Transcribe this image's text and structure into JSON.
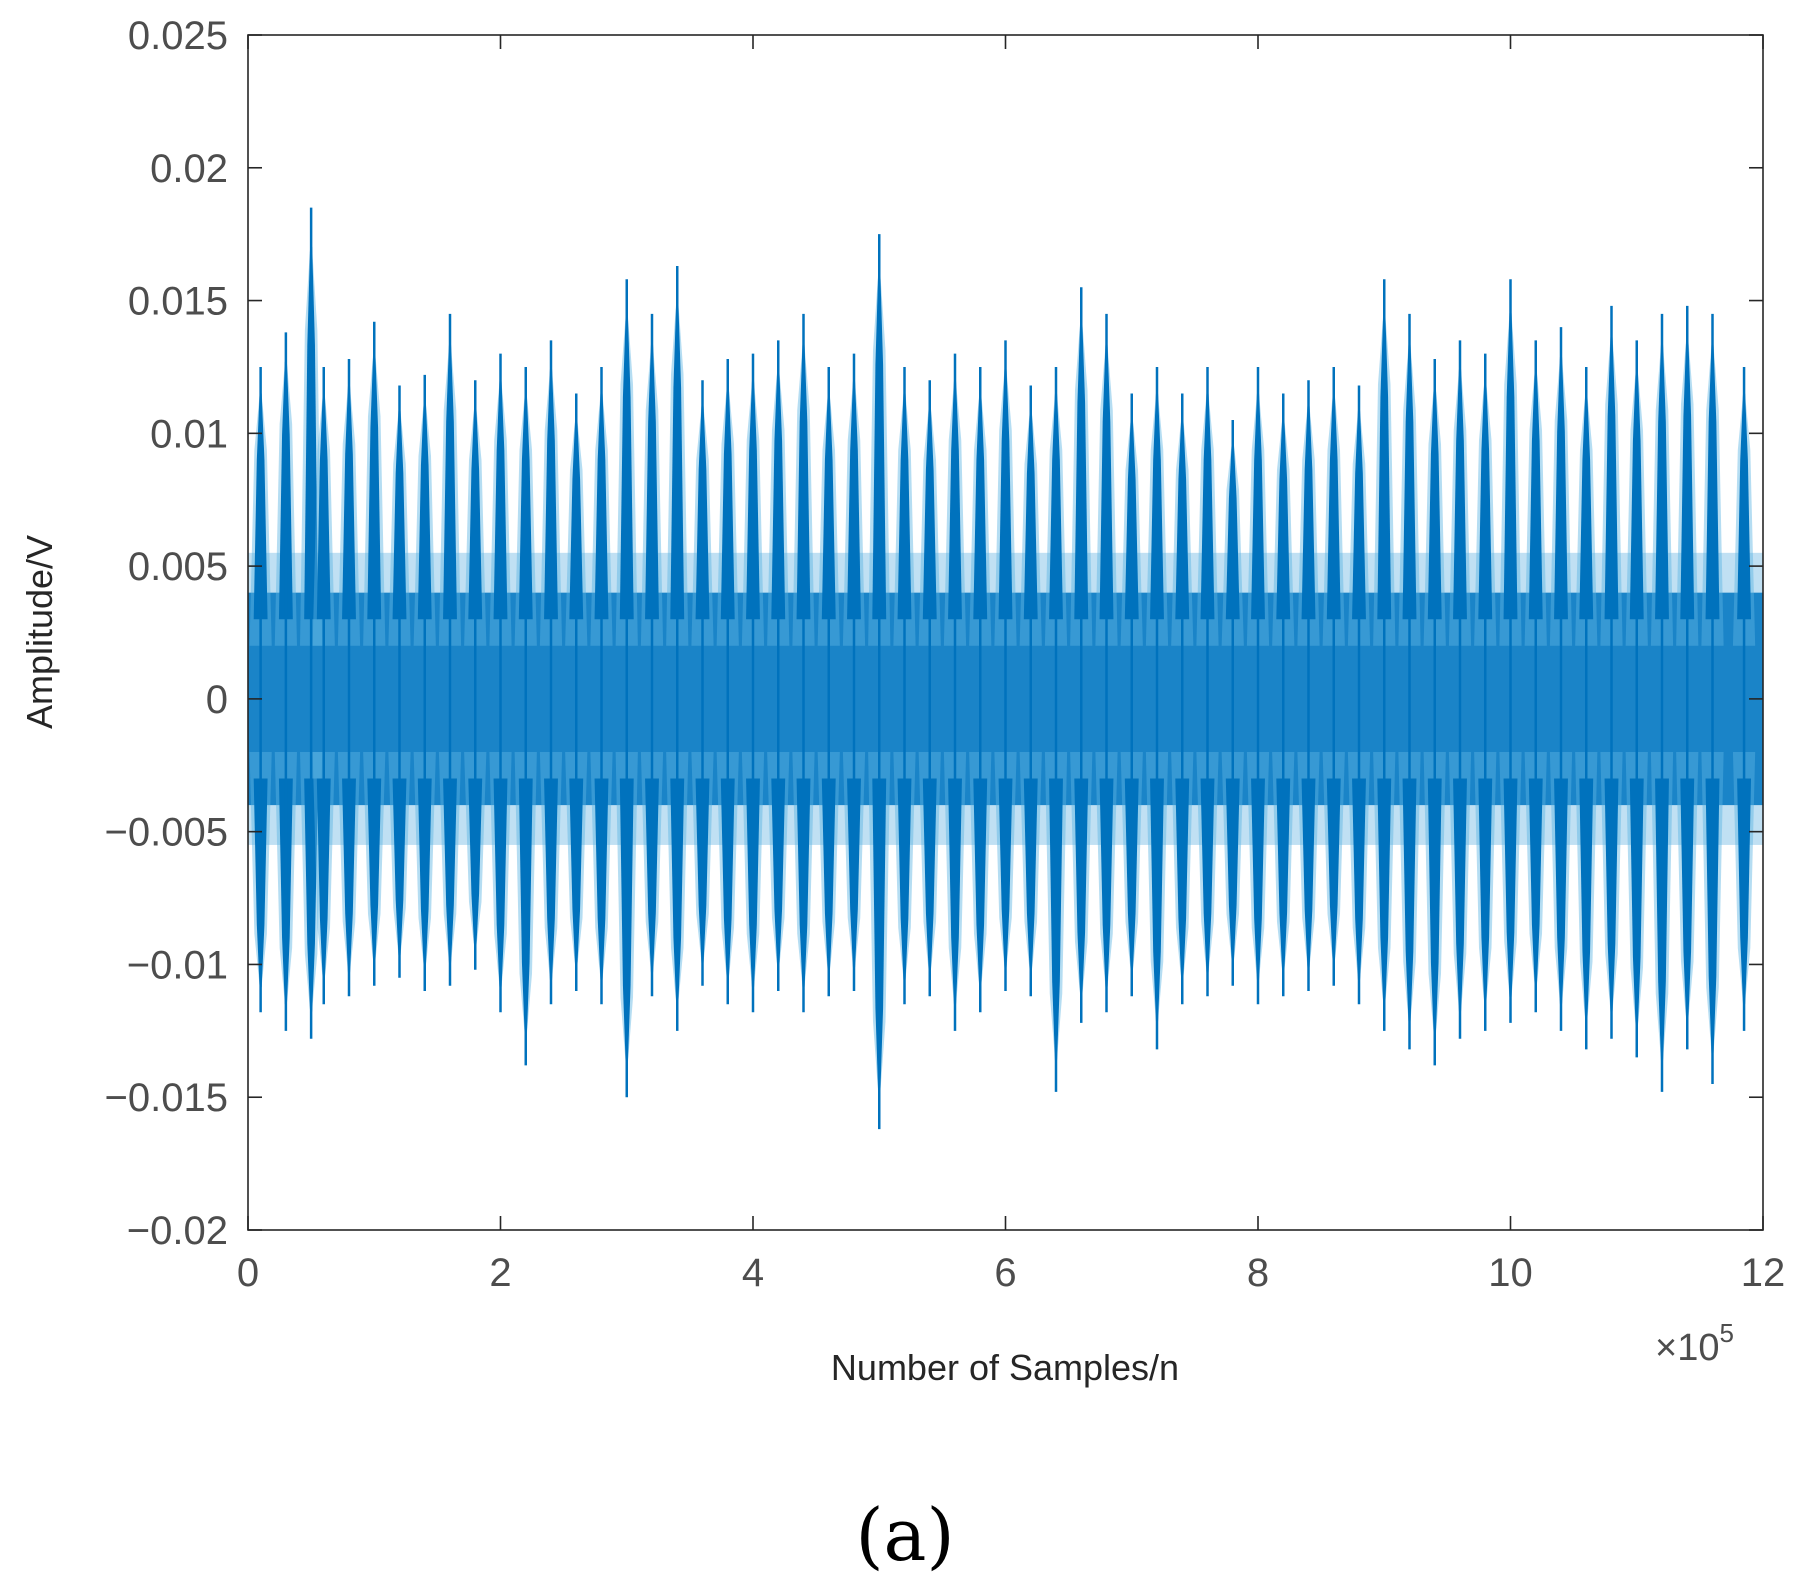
{
  "chart_data": {
    "type": "line",
    "title": "",
    "xlabel": "Number of Samples/n",
    "ylabel": "Amplitude/V",
    "x_multiplier_label": "×10",
    "x_multiplier_exponent": "5",
    "xlim": [
      0,
      12
    ],
    "ylim": [
      -0.02,
      0.025
    ],
    "x_ticks": [
      0,
      2,
      4,
      6,
      8,
      10,
      12
    ],
    "x_tick_labels": [
      "0",
      "2",
      "4",
      "6",
      "8",
      "10",
      "12"
    ],
    "y_ticks": [
      -0.02,
      -0.015,
      -0.01,
      -0.005,
      0,
      0.005,
      0.01,
      0.015,
      0.02,
      0.025
    ],
    "y_tick_labels": [
      "−0.02",
      "−0.015",
      "−0.01",
      "−0.005",
      "0",
      "0.005",
      "0.01",
      "0.015",
      "0.02",
      "0.025"
    ],
    "grid": false,
    "line_color": "#0072bd",
    "series": [
      {
        "color": "#0072bd",
        "baseline_band": [
          -0.004,
          0.004
        ],
        "pulse_count": 60,
        "envelope": {
          "x": [
            0.1,
            0.3,
            0.5,
            0.6,
            0.8,
            1.0,
            1.2,
            1.4,
            1.6,
            1.8,
            2.0,
            2.2,
            2.4,
            2.6,
            2.8,
            3.0,
            3.2,
            3.4,
            3.6,
            3.8,
            4.0,
            4.2,
            4.4,
            4.6,
            4.8,
            5.0,
            5.2,
            5.4,
            5.6,
            5.8,
            6.0,
            6.2,
            6.4,
            6.6,
            6.8,
            7.0,
            7.2,
            7.4,
            7.6,
            7.8,
            8.0,
            8.2,
            8.4,
            8.6,
            8.8,
            9.0,
            9.2,
            9.4,
            9.6,
            9.8,
            10.0,
            10.2,
            10.4,
            10.6,
            10.8,
            11.0,
            11.2,
            11.4,
            11.6,
            11.85
          ],
          "max": [
            0.0125,
            0.0138,
            0.0185,
            0.0125,
            0.0128,
            0.0142,
            0.0118,
            0.0122,
            0.0145,
            0.012,
            0.013,
            0.0125,
            0.0135,
            0.0115,
            0.0125,
            0.0158,
            0.0145,
            0.0163,
            0.012,
            0.0128,
            0.013,
            0.0135,
            0.0145,
            0.0125,
            0.013,
            0.0175,
            0.0125,
            0.012,
            0.013,
            0.0125,
            0.0135,
            0.0118,
            0.0125,
            0.0155,
            0.0145,
            0.0115,
            0.0125,
            0.0115,
            0.0125,
            0.0105,
            0.0125,
            0.0115,
            0.012,
            0.0125,
            0.0118,
            0.0158,
            0.0145,
            0.0128,
            0.0135,
            0.013,
            0.0158,
            0.0135,
            0.014,
            0.0125,
            0.0148,
            0.0135,
            0.0145,
            0.0148,
            0.0145,
            0.0125
          ],
          "min": [
            -0.0118,
            -0.0125,
            -0.0128,
            -0.0115,
            -0.0112,
            -0.0108,
            -0.0105,
            -0.011,
            -0.0108,
            -0.0102,
            -0.0118,
            -0.0138,
            -0.0115,
            -0.011,
            -0.0115,
            -0.015,
            -0.0112,
            -0.0125,
            -0.0108,
            -0.0115,
            -0.0118,
            -0.011,
            -0.0118,
            -0.0112,
            -0.011,
            -0.0162,
            -0.0115,
            -0.0112,
            -0.0125,
            -0.0118,
            -0.011,
            -0.0112,
            -0.0148,
            -0.0122,
            -0.0118,
            -0.0112,
            -0.0132,
            -0.0115,
            -0.0112,
            -0.0108,
            -0.0115,
            -0.0112,
            -0.011,
            -0.0108,
            -0.0115,
            -0.0125,
            -0.0132,
            -0.0138,
            -0.0128,
            -0.0125,
            -0.0122,
            -0.0118,
            -0.0125,
            -0.0132,
            -0.0128,
            -0.0135,
            -0.0148,
            -0.0132,
            -0.0145,
            -0.0125
          ]
        }
      }
    ]
  },
  "figure": {
    "panel_label": "(a)"
  }
}
